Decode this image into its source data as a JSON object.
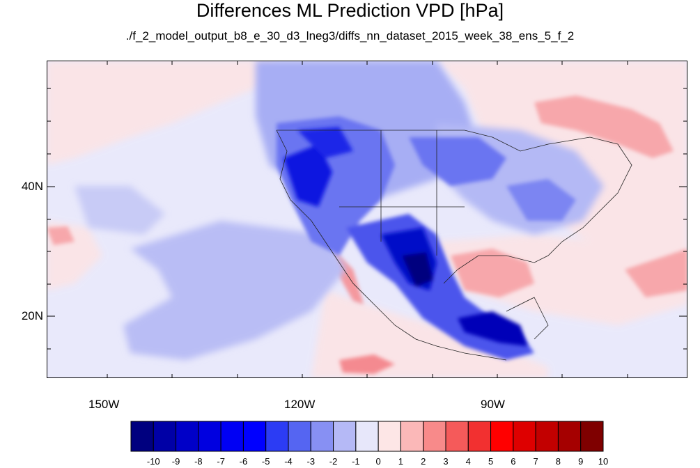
{
  "title": "Differences ML Prediction VPD [hPa]",
  "subtitle": "./f_2_model_output_b8_e_30_d3_lneg3/diffs_nn_dataset_2015_week_38_ens_5_f_2",
  "map": {
    "background": "#e9e9fb",
    "lon_labels": [
      "150W",
      "120W",
      "90W"
    ],
    "lat_labels": [
      "40N",
      "20N"
    ]
  },
  "colorbar": {
    "labels": [
      "-10",
      "-9",
      "-8",
      "-7",
      "-6",
      "-5",
      "-4",
      "-3",
      "-2",
      "-1",
      "0",
      "1",
      "2",
      "3",
      "4",
      "5",
      "6",
      "7",
      "8",
      "9",
      "10"
    ],
    "colors": [
      "#00007f",
      "#0000a6",
      "#0000c8",
      "#0000e0",
      "#0000f4",
      "#0000ff",
      "#2c3cf4",
      "#5565f2",
      "#8790f3",
      "#b5b9f6",
      "#e7e7fa",
      "#fde6e6",
      "#fbb8b8",
      "#f88a8a",
      "#f55a5a",
      "#f23030",
      "#ff0000",
      "#de0000",
      "#c20000",
      "#a50000",
      "#7f0000"
    ]
  }
}
